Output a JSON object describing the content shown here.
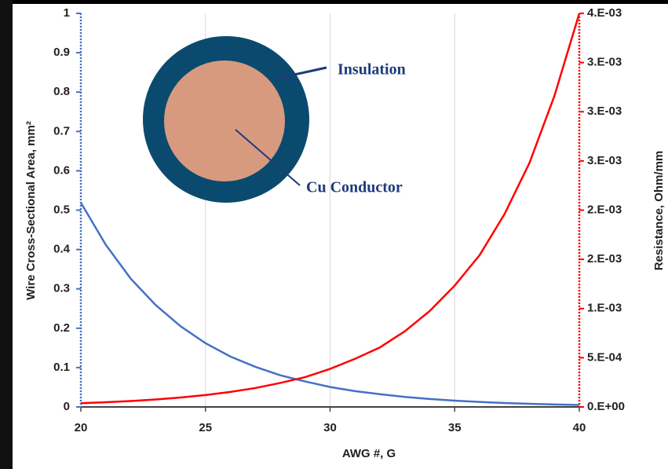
{
  "chart_data": {
    "type": "line",
    "x_label": "AWG #, G",
    "y_label": "Wire Cross-Sectional Area, mm²",
    "y2_label": "Resistance, Ohm/mm",
    "annotations": [
      "Insulation",
      "Cu Conductor"
    ],
    "x": [
      20,
      21,
      22,
      23,
      24,
      25,
      26,
      27,
      28,
      29,
      30,
      31,
      32,
      33,
      34,
      35,
      36,
      37,
      38,
      39,
      40
    ],
    "series": [
      {
        "color": "#4472c4",
        "values": [
          0.519,
          0.412,
          0.326,
          0.259,
          0.205,
          0.162,
          0.128,
          0.102,
          0.0804,
          0.0647,
          0.0507,
          0.0401,
          0.0324,
          0.0255,
          0.0201,
          0.0159,
          0.0127,
          0.01,
          0.0079,
          0.0062,
          0.0049
        ]
      },
      {
        "color": "#ff0000",
        "axis": "y2",
        "values": [
          3.78e-05,
          4.76e-05,
          6.01e-05,
          7.57e-05,
          9.56e-05,
          0.000121,
          0.000153,
          0.000192,
          0.000244,
          0.000303,
          0.000387,
          0.000489,
          0.000605,
          0.000769,
          0.000975,
          0.001233,
          0.001543,
          0.00196,
          0.00248,
          0.00316,
          0.004
        ]
      }
    ],
    "xlim": [
      20,
      40
    ],
    "xticks": [
      20,
      25,
      30,
      35,
      40
    ],
    "ylim": [
      0,
      1
    ],
    "yticks": [
      0,
      0.1,
      0.2,
      0.3,
      0.4,
      0.5,
      0.6,
      0.7,
      0.8,
      0.9,
      1
    ],
    "y2lim": [
      0,
      0.004
    ],
    "y2ticks": [
      {
        "value": 0,
        "label": "0.E+00"
      },
      {
        "value": 0.0005,
        "label": "5.E-04"
      },
      {
        "value": 0.001,
        "label": "1.E-03"
      },
      {
        "value": 0.0015,
        "label": "2.E-03"
      },
      {
        "value": 0.002,
        "label": "2.E-03"
      },
      {
        "value": 0.0025,
        "label": "3.E-03"
      },
      {
        "value": 0.003,
        "label": "3.E-03"
      },
      {
        "value": 0.0035,
        "label": "3.E-03"
      },
      {
        "value": 0.004,
        "label": "4.E-03"
      }
    ],
    "grid": "x",
    "y_axis_color": "#4472c4",
    "y2_axis_color": "#ff0000"
  }
}
